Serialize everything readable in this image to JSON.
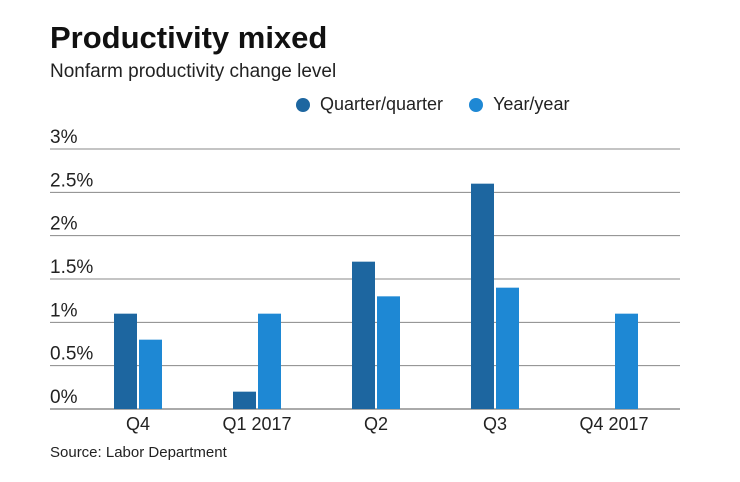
{
  "title": "Productivity mixed",
  "subtitle": "Nonfarm productivity change level",
  "source": "Source: Labor Department",
  "colors": {
    "quarter": "#1d66a0",
    "year": "#1e88d4",
    "grid": "#888888"
  },
  "chart_data": {
    "type": "bar",
    "categories": [
      "Q4",
      "Q1 2017",
      "Q2",
      "Q3",
      "Q4 2017"
    ],
    "series": [
      {
        "name": "Quarter/quarter",
        "values": [
          1.1,
          0.2,
          1.7,
          2.6,
          0
        ]
      },
      {
        "name": "Year/year",
        "values": [
          0.8,
          1.1,
          1.3,
          1.4,
          1.1
        ]
      }
    ],
    "ylim": [
      0,
      3
    ],
    "yticks": [
      0,
      0.5,
      1,
      1.5,
      2,
      2.5,
      3
    ],
    "ytick_labels": [
      "0%",
      "0.5%",
      "1%",
      "1.5%",
      "2%",
      "2.5%",
      "3%"
    ],
    "grid": true,
    "legend": "top"
  }
}
